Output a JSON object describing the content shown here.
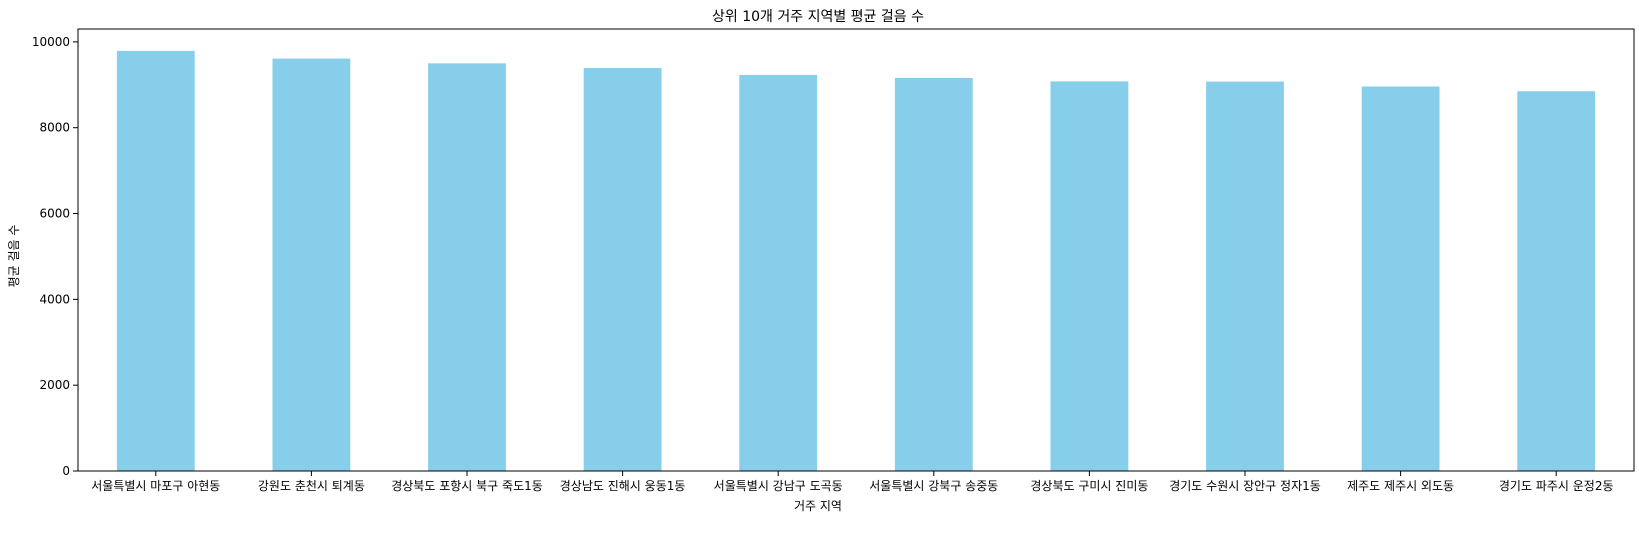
{
  "chart_data": {
    "type": "bar",
    "title": "상위 10개 거주 지역별 평균 걸음 수",
    "xlabel": "거주 지역",
    "ylabel": "평균 걸음 수",
    "categories": [
      "서울특별시 마포구 아현동",
      "강원도 춘천시 퇴계동",
      "경상북도 포항시 북구 죽도1동",
      "경상남도 진해시 웅동1동",
      "서울특별시 강남구 도곡동",
      "서울특별시 강북구 송중동",
      "경상북도 구미시 진미동",
      "경기도 수원시 장안구 정자1동",
      "제주도 제주시 외도동",
      "경기도 파주시 운정2동"
    ],
    "values": [
      9790,
      9610,
      9500,
      9390,
      9230,
      9160,
      9080,
      9075,
      8960,
      8850
    ],
    "ylim": [
      0,
      10300
    ],
    "yticks": [
      0,
      2000,
      4000,
      6000,
      8000,
      10000
    ],
    "bar_color": "#87CEEB",
    "grid": false,
    "legend": "none"
  }
}
